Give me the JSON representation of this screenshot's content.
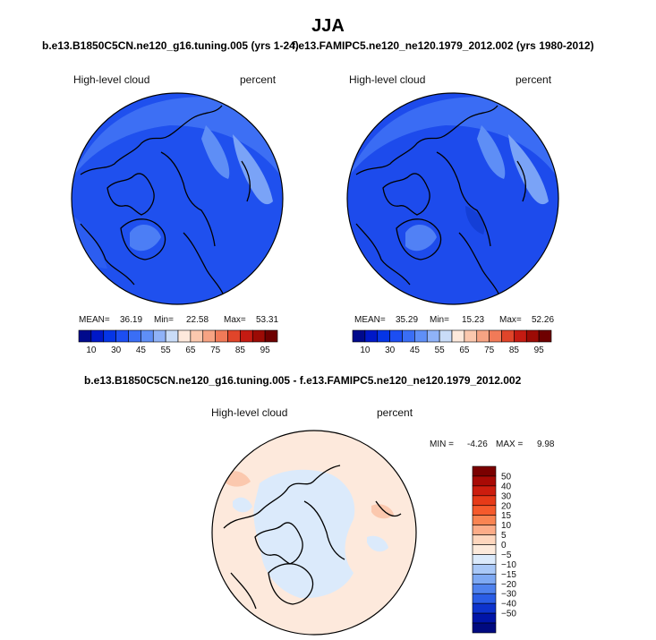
{
  "page_title": "JJA",
  "chart_data": [
    {
      "type": "heatmap",
      "projection": "north-polar-stereographic",
      "case": "b.e13.B1850C5CN.ne120_g16.tuning.005 (yrs 1-24)",
      "left_label": "High-level cloud",
      "right_label": "percent",
      "stats": {
        "mean_label": "MEAN=",
        "mean": "36.19",
        "min_label": "Min=",
        "min": "22.58",
        "max_label": "Max=",
        "max": "53.31"
      },
      "colorbar": {
        "ticks": [
          "10",
          "30",
          "45",
          "55",
          "65",
          "75",
          "85",
          "95"
        ],
        "colors": [
          "#000a8c",
          "#0018c8",
          "#0535e6",
          "#1c4ef2",
          "#3a6ef5",
          "#5f8ff7",
          "#8fb2f8",
          "#c9dcf8",
          "#fde9dc",
          "#fbc8ae",
          "#f7a383",
          "#f17a58",
          "#e0452a",
          "#c51b12",
          "#9c0b05",
          "#6e0000"
        ]
      }
    },
    {
      "type": "heatmap",
      "projection": "north-polar-stereographic",
      "case": "f.e13.FAMIPC5.ne120_ne120.1979_2012.002 (yrs 1980-2012)",
      "left_label": "High-level cloud",
      "right_label": "percent",
      "stats": {
        "mean_label": "MEAN=",
        "mean": "35.29",
        "min_label": "Min=",
        "min": "15.23",
        "max_label": "Max=",
        "max": "52.26"
      },
      "colorbar": {
        "ticks": [
          "10",
          "30",
          "45",
          "55",
          "65",
          "75",
          "85",
          "95"
        ],
        "colors": [
          "#000a8c",
          "#0018c8",
          "#0535e6",
          "#1c4ef2",
          "#3a6ef5",
          "#5f8ff7",
          "#8fb2f8",
          "#c9dcf8",
          "#fde9dc",
          "#fbc8ae",
          "#f7a383",
          "#f17a58",
          "#e0452a",
          "#c51b12",
          "#9c0b05",
          "#6e0000"
        ]
      }
    },
    {
      "type": "heatmap",
      "projection": "north-polar-stereographic",
      "case": "b.e13.B1850C5CN.ne120_g16.tuning.005 - f.e13.FAMIPC5.ne120_ne120.1979_2012.002",
      "left_label": "High-level cloud",
      "right_label": "percent",
      "stats": {
        "min_label": "MIN =",
        "min": "-4.26",
        "max_label": "MAX =",
        "max": "9.98"
      },
      "colorbar": {
        "ticks": [
          "50",
          "40",
          "30",
          "20",
          "15",
          "10",
          "5",
          "0",
          "−5",
          "−10",
          "−15",
          "−20",
          "−30",
          "−40",
          "−50"
        ],
        "colors": [
          "#7a0000",
          "#a80a05",
          "#cc1d0e",
          "#e63a18",
          "#f55a2c",
          "#f98452",
          "#fcac88",
          "#fed6bd",
          "#fdeadb",
          "#dbeafb",
          "#a9c8f7",
          "#7ea9f3",
          "#4f82ee",
          "#2a5de6",
          "#0d33cd",
          "#0015a8",
          "#000a80"
        ]
      }
    }
  ]
}
